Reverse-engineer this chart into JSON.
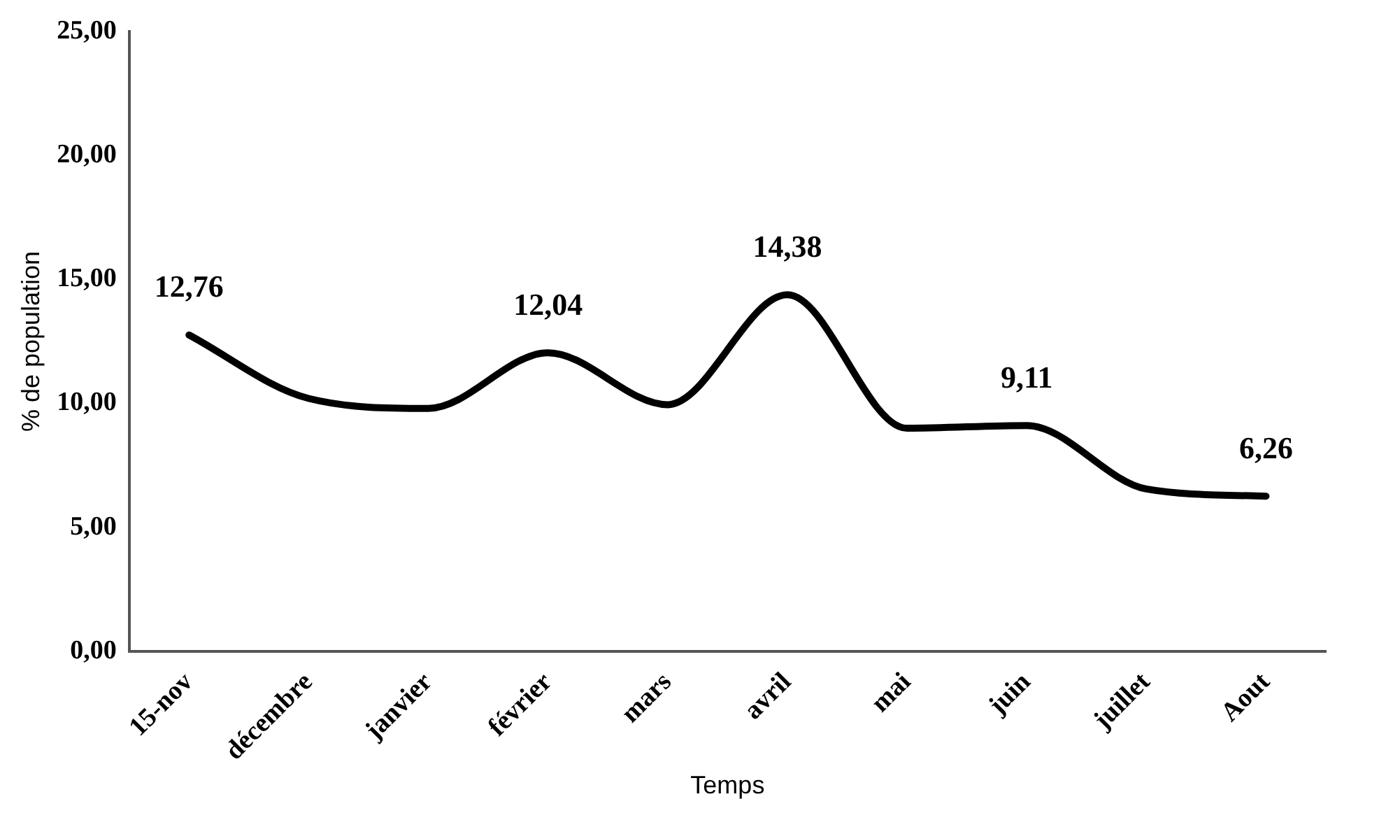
{
  "chart_data": {
    "type": "line",
    "xlabel": "Temps",
    "ylabel": "% de population",
    "categories": [
      "15-nov",
      "décembre",
      "janvier",
      "février",
      "mars",
      "avril",
      "mai",
      "juin",
      "juillet",
      "Aout"
    ],
    "series": [
      {
        "color": "#000000",
        "values": [
          12.76,
          10.2,
          9.8,
          12.04,
          9.95,
          14.38,
          9.0,
          9.11,
          6.55,
          6.26
        ],
        "value_labels": [
          "12,76",
          null,
          null,
          "12,04",
          null,
          "14,38",
          null,
          "9,11",
          null,
          "6,26"
        ]
      }
    ],
    "ylim": [
      0,
      25
    ],
    "yticks": [
      {
        "value": 0,
        "label": "0,00"
      },
      {
        "value": 5,
        "label": "5,00"
      },
      {
        "value": 10,
        "label": "10,00"
      },
      {
        "value": 15,
        "label": "15,00"
      },
      {
        "value": 20,
        "label": "20,00"
      },
      {
        "value": 25,
        "label": "25,00"
      }
    ],
    "grid": false,
    "legend": false,
    "marker": "none",
    "line_style": "solid"
  }
}
